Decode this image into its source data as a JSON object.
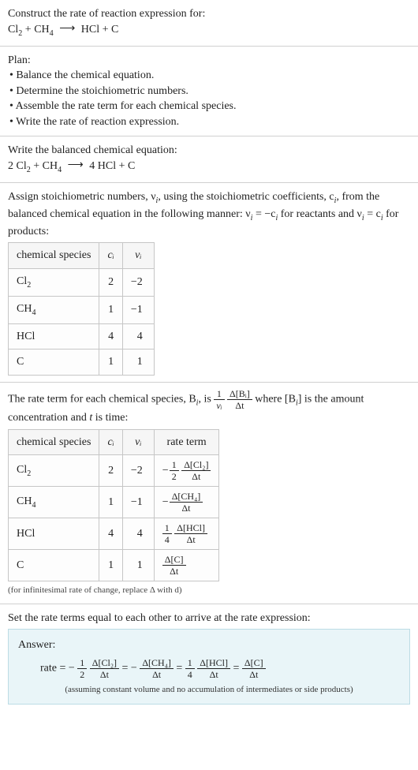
{
  "prompt": {
    "title": "Construct the rate of reaction expression for:",
    "equation_lhs_a": "Cl",
    "equation_lhs_a_sub": "2",
    "plus": " + ",
    "equation_lhs_b": "CH",
    "equation_lhs_b_sub": "4",
    "arrow": "⟶",
    "equation_rhs": "HCl + C"
  },
  "plan": {
    "heading": "Plan:",
    "b1": "• Balance the chemical equation.",
    "b2": "• Determine the stoichiometric numbers.",
    "b3": "• Assemble the rate term for each chemical species.",
    "b4": "• Write the rate of reaction expression."
  },
  "balanced": {
    "heading": "Write the balanced chemical equation:",
    "pre_a": "2 Cl",
    "sub_a": "2",
    "plus": " + CH",
    "sub_b": "4",
    "arrow": "⟶",
    "rhs": "4 HCl + C"
  },
  "stoich": {
    "para_a": "Assign stoichiometric numbers, ν",
    "para_a_sub": "i",
    "para_b": ", using the stoichiometric coefficients, c",
    "para_b_sub": "i",
    "para_c": ", from the balanced chemical equation in the following manner: ν",
    "para_c_sub": "i",
    "para_d": " = −c",
    "para_d_sub": "i",
    "para_e": " for reactants and ν",
    "para_e_sub": "i",
    "para_f": " = c",
    "para_f_sub": "i",
    "para_g": " for products:",
    "headers": {
      "h1": "chemical species",
      "h2": "cᵢ",
      "h3": "νᵢ"
    },
    "rows": [
      {
        "sp_a": "Cl",
        "sp_sub": "2",
        "c": "2",
        "v": "−2"
      },
      {
        "sp_a": "CH",
        "sp_sub": "4",
        "c": "1",
        "v": "−1"
      },
      {
        "sp_a": "HCl",
        "sp_sub": "",
        "c": "4",
        "v": "4"
      },
      {
        "sp_a": "C",
        "sp_sub": "",
        "c": "1",
        "v": "1"
      }
    ]
  },
  "rateterm": {
    "para_a": "The rate term for each chemical species, B",
    "para_a_sub": "i",
    "para_b": ", is ",
    "f1n": "1",
    "f1d": "νᵢ",
    "f2n": "Δ[Bᵢ]",
    "f2d": "Δt",
    "para_c": " where [B",
    "para_c_sub": "i",
    "para_d": "] is the amount concentration and ",
    "tvar": "t",
    "para_e": " is time:",
    "headers": {
      "h1": "chemical species",
      "h2": "cᵢ",
      "h3": "νᵢ",
      "h4": "rate term"
    },
    "rows": [
      {
        "sp_a": "Cl",
        "sp_sub": "2",
        "c": "2",
        "v": "−2",
        "neg": "−",
        "coef_n": "1",
        "coef_d": "2",
        "dn": "Δ[Cl₂]",
        "dd": "Δt"
      },
      {
        "sp_a": "CH",
        "sp_sub": "4",
        "c": "1",
        "v": "−1",
        "neg": "−",
        "coef_n": "",
        "coef_d": "",
        "dn": "Δ[CH₄]",
        "dd": "Δt"
      },
      {
        "sp_a": "HCl",
        "sp_sub": "",
        "c": "4",
        "v": "4",
        "neg": "",
        "coef_n": "1",
        "coef_d": "4",
        "dn": "Δ[HCl]",
        "dd": "Δt"
      },
      {
        "sp_a": "C",
        "sp_sub": "",
        "c": "1",
        "v": "1",
        "neg": "",
        "coef_n": "",
        "coef_d": "",
        "dn": "Δ[C]",
        "dd": "Δt"
      }
    ],
    "note": "(for infinitesimal rate of change, replace Δ with d)"
  },
  "final": {
    "heading": "Set the rate terms equal to each other to arrive at the rate expression:",
    "answer_label": "Answer:",
    "rate_prefix": "rate = −",
    "c1n": "1",
    "c1d": "2",
    "t1n": "Δ[Cl₂]",
    "t1d": "Δt",
    "eq": " = ",
    "neg2": "−",
    "t2n": "Δ[CH₄]",
    "t2d": "Δt",
    "c3n": "1",
    "c3d": "4",
    "t3n": "Δ[HCl]",
    "t3d": "Δt",
    "t4n": "Δ[C]",
    "t4d": "Δt",
    "note": "(assuming constant volume and no accumulation of intermediates or side products)"
  },
  "colors": {
    "border": "#c6c6c6",
    "answer_bg": "#e9f5f8",
    "answer_border": "#bcdce5"
  }
}
